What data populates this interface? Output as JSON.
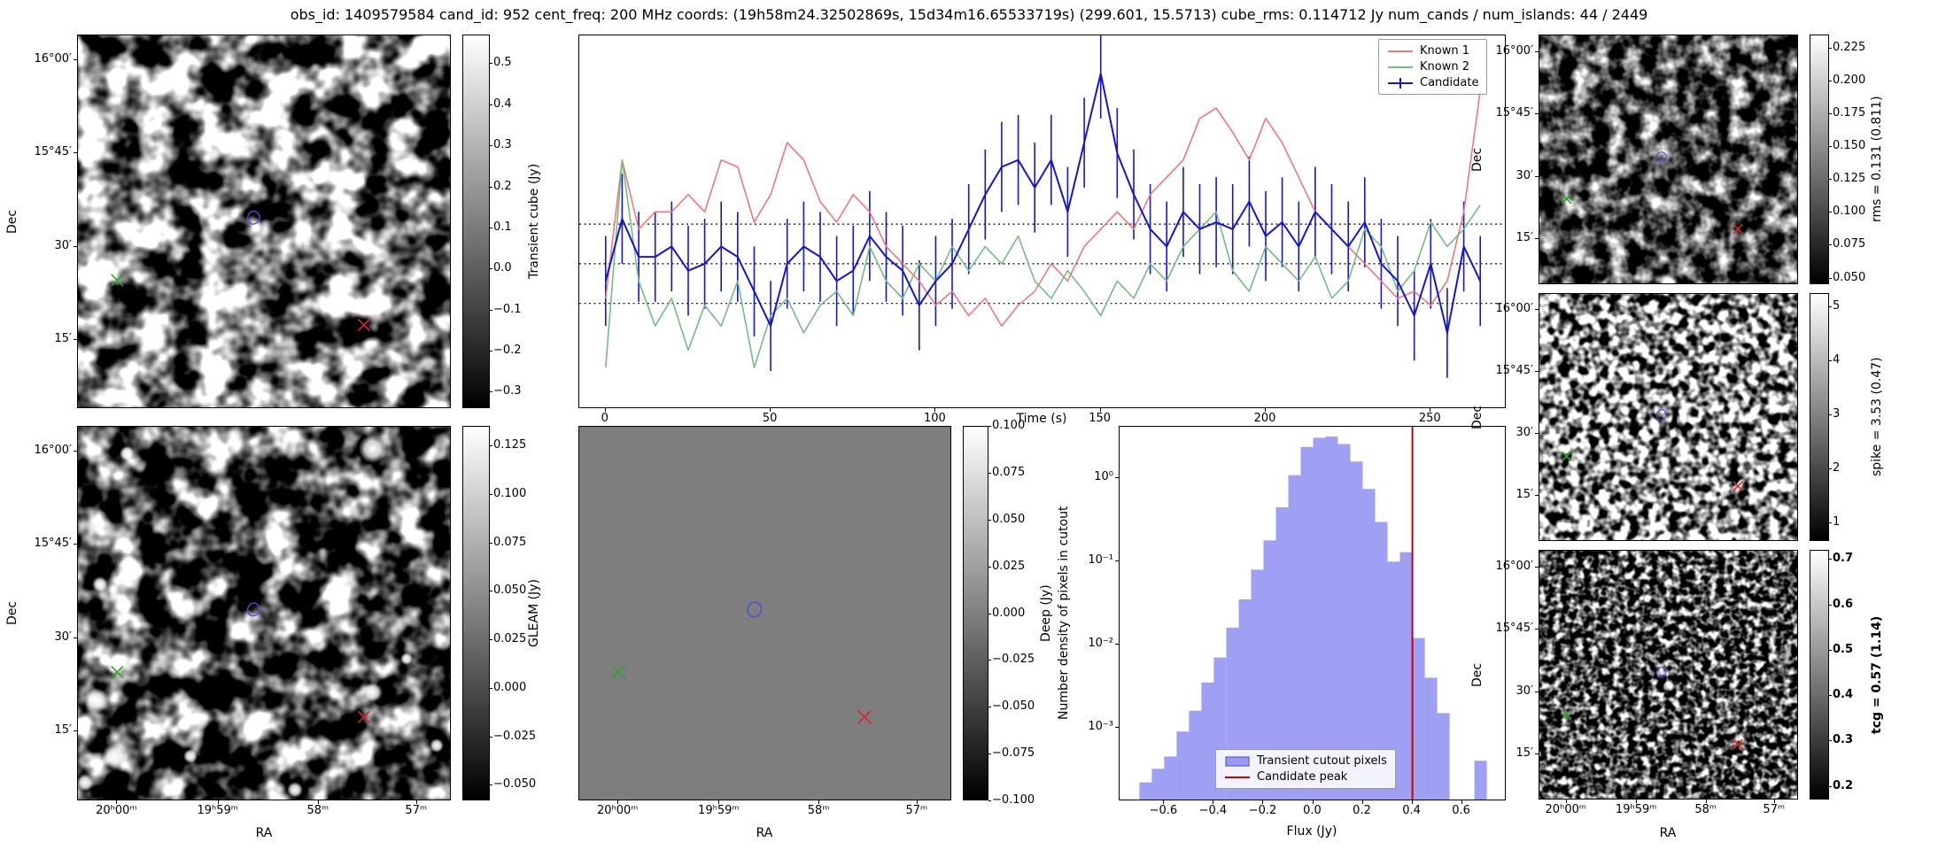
{
  "title": "obs_id: 1409579584 cand_id: 952 cent_freq: 200 MHz coords: (19h58m24.32502869s, 15d34m16.65533719s) (299.601, 15.5713) cube_rms: 0.114712 Jy num_cands / num_islands: 44 / 2449",
  "axes": {
    "dec_label": "Dec",
    "ra_label": "RA",
    "dec_ticks": [
      "16°00′",
      "15°45′",
      "30′",
      "15′"
    ],
    "ra_ticks": [
      "20ʰ00ᵐ",
      "19ʰ59ᵐ",
      "58ᵐ",
      "57ᵐ"
    ]
  },
  "colors": {
    "known1": "#f07878",
    "known2": "#72bd82",
    "candidate": "#1515cf",
    "hist_bar": "rgba(80,80,235,0.55)",
    "candidate_peak_line": "#cc0000",
    "marker_green": "#2ca02c",
    "marker_red": "#d62728",
    "contour_blue": "#5050d8"
  },
  "markers": {
    "known2_x": {
      "shape": "x",
      "color": "#2ca02c",
      "frac": [
        0.105,
        0.655
      ]
    },
    "known1_x": {
      "shape": "x",
      "color": "#d62728",
      "frac": [
        0.765,
        0.775
      ]
    },
    "candidate_contour": {
      "color": "#5050d8",
      "frac": [
        0.47,
        0.49
      ]
    }
  },
  "colorbars": {
    "transient": {
      "label": "Transient cube (Jy)",
      "tick_labels": [
        "0.5",
        "0.4",
        "0.3",
        "0.2",
        "0.1",
        "0.0",
        "−0.1",
        "−0.2",
        "−0.3"
      ],
      "tick_values": [
        0.5,
        0.4,
        0.3,
        0.2,
        0.1,
        0,
        -0.1,
        -0.2,
        -0.3
      ],
      "vmin": -0.34,
      "vmax": 0.57
    },
    "gleam": {
      "label": "GLEAM (Jy)",
      "tick_labels": [
        "0.125",
        "0.100",
        "0.075",
        "0.050",
        "0.025",
        "0.000",
        "−0.025",
        "−0.050"
      ],
      "tick_values": [
        0.125,
        0.1,
        0.075,
        0.05,
        0.025,
        0,
        -0.025,
        -0.05
      ],
      "vmin": -0.058,
      "vmax": 0.135
    },
    "deep": {
      "label": "Deep (Jy)",
      "tick_labels": [
        "0.100",
        "0.075",
        "0.050",
        "0.025",
        "0.000",
        "−0.025",
        "−0.050",
        "−0.075",
        "−0.100"
      ],
      "tick_values": [
        0.1,
        0.075,
        0.05,
        0.025,
        0,
        -0.025,
        -0.05,
        -0.075,
        -0.1
      ],
      "vmin": -0.1,
      "vmax": 0.1
    },
    "rms": {
      "label": "rms = 0.131 (0.811)",
      "tick_labels": [
        "0.225",
        "0.200",
        "0.175",
        "0.150",
        "0.125",
        "0.100",
        "0.075",
        "0.050"
      ],
      "tick_values": [
        0.225,
        0.2,
        0.175,
        0.15,
        0.125,
        0.1,
        0.075,
        0.05
      ],
      "vmin": 0.045,
      "vmax": 0.235
    },
    "spike": {
      "label": "spike = 3.53 (0.47)",
      "tick_labels": [
        "5",
        "4",
        "3",
        "2",
        "1"
      ],
      "tick_values": [
        5,
        4,
        3,
        2,
        1
      ],
      "vmin": 0.65,
      "vmax": 5.25
    },
    "tcg": {
      "label": "tcg = 0.57 (1.14)",
      "tick_labels": [
        "0.7",
        "0.6",
        "0.5",
        "0.4",
        "0.3",
        "0.2"
      ],
      "tick_values": [
        0.7,
        0.6,
        0.5,
        0.4,
        0.3,
        0.2
      ],
      "vmin": 0.17,
      "vmax": 0.72,
      "bold": true
    }
  },
  "chart_data": [
    {
      "id": "lightcurve",
      "type": "line",
      "title": "",
      "xlabel": "Time (s)",
      "ylabel": "",
      "xlim": [
        -8,
        273
      ],
      "ylim": [
        -0.42,
        0.66
      ],
      "x_ticks": [
        0,
        50,
        100,
        150,
        200,
        250
      ],
      "x_tick_labels": [
        "0",
        "50",
        "100",
        "150",
        "200",
        "250"
      ],
      "hlines": [
        0.114712,
        0.0,
        -0.114712
      ],
      "hline_style": "dotted",
      "legend_position": "upper right",
      "x": [
        0,
        5,
        10,
        15,
        20,
        25,
        30,
        35,
        40,
        45,
        50,
        55,
        60,
        65,
        70,
        75,
        80,
        85,
        90,
        95,
        100,
        105,
        110,
        115,
        120,
        125,
        130,
        135,
        140,
        145,
        150,
        155,
        160,
        165,
        170,
        175,
        180,
        185,
        190,
        195,
        200,
        205,
        210,
        215,
        220,
        225,
        230,
        235,
        240,
        245,
        250,
        255,
        260,
        265
      ],
      "series": [
        {
          "name": "Known 1",
          "color": "#f07878",
          "values": [
            -0.1,
            0.3,
            0.1,
            0.15,
            0.15,
            0.2,
            0.15,
            0.3,
            0.28,
            0.12,
            0.2,
            0.35,
            0.3,
            0.18,
            0.12,
            0.2,
            0.15,
            0.05,
            0.0,
            -0.05,
            -0.12,
            -0.08,
            -0.15,
            -0.1,
            -0.18,
            -0.12,
            -0.08,
            0.0,
            -0.05,
            0.05,
            0.1,
            0.15,
            0.1,
            0.2,
            0.25,
            0.3,
            0.42,
            0.45,
            0.38,
            0.3,
            0.42,
            0.35,
            0.25,
            0.15,
            0.1,
            0.05,
            0.0,
            -0.05,
            -0.1,
            -0.08,
            -0.12,
            -0.05,
            0.15,
            0.5
          ]
        },
        {
          "name": "Known 2",
          "color": "#72bd82",
          "values": [
            -0.3,
            0.3,
            -0.05,
            -0.18,
            -0.1,
            -0.25,
            -0.12,
            -0.18,
            -0.05,
            -0.3,
            -0.15,
            -0.1,
            -0.2,
            -0.12,
            -0.08,
            -0.15,
            0.05,
            -0.05,
            -0.1,
            0.0,
            -0.05,
            0.05,
            -0.02,
            0.05,
            0.0,
            0.08,
            -0.05,
            -0.1,
            -0.02,
            -0.08,
            -0.15,
            -0.05,
            -0.1,
            0.0,
            -0.05,
            0.05,
            0.1,
            0.15,
            -0.02,
            -0.08,
            0.05,
            0.0,
            -0.05,
            0.02,
            -0.1,
            -0.05,
            0.1,
            0.05,
            -0.08,
            -0.02,
            0.12,
            0.05,
            0.1,
            0.17
          ]
        },
        {
          "name": "Candidate",
          "color": "#1515cf",
          "yerr": 0.13,
          "values": [
            -0.05,
            0.13,
            0.02,
            0.02,
            0.05,
            -0.02,
            0.0,
            0.05,
            0.02,
            -0.08,
            -0.18,
            0.0,
            0.05,
            0.02,
            -0.05,
            -0.02,
            0.08,
            0.02,
            -0.02,
            -0.12,
            -0.05,
            0.0,
            0.1,
            0.2,
            0.28,
            0.3,
            0.22,
            0.3,
            0.15,
            0.35,
            0.55,
            0.32,
            0.2,
            0.1,
            0.05,
            0.15,
            0.1,
            0.12,
            0.1,
            0.18,
            0.08,
            0.12,
            0.05,
            0.15,
            0.1,
            0.05,
            0.12,
            0.0,
            -0.05,
            -0.15,
            0.0,
            -0.2,
            0.05,
            -0.05
          ]
        }
      ]
    },
    {
      "id": "flux-histogram",
      "type": "bar",
      "xlabel": "Flux (Jy)",
      "ylabel": "Number density of pixels in cutout",
      "yscale": "log",
      "xlim": [
        -0.78,
        0.78
      ],
      "ylim": [
        0.00013,
        4.2
      ],
      "x_tick_values": [
        -0.6,
        -0.4,
        -0.2,
        0,
        0.2,
        0.4,
        0.6
      ],
      "x_ticks": [
        "−0.6",
        "−0.4",
        "−0.2",
        "0.0",
        "0.2",
        "0.4",
        "0.6"
      ],
      "y_tick_values": [
        1,
        0.1,
        0.01,
        0.001
      ],
      "y_ticks": [
        "10⁰",
        "10⁻¹",
        "10⁻²",
        "10⁻³"
      ],
      "bin_width": 0.05,
      "bin_centers": [
        -0.675,
        -0.625,
        -0.575,
        -0.525,
        -0.475,
        -0.425,
        -0.375,
        -0.325,
        -0.275,
        -0.225,
        -0.175,
        -0.125,
        -0.075,
        -0.025,
        0.025,
        0.075,
        0.125,
        0.175,
        0.225,
        0.275,
        0.325,
        0.375,
        0.425,
        0.475,
        0.525,
        0.575,
        0.625,
        0.675
      ],
      "densities": [
        0.00022,
        0.00032,
        0.00045,
        0.0009,
        0.0016,
        0.0035,
        0.007,
        0.016,
        0.035,
        0.08,
        0.18,
        0.45,
        1.1,
        2.4,
        3.1,
        3.2,
        2.6,
        1.6,
        0.75,
        0.3,
        0.1,
        0.13,
        0.012,
        0.004,
        0.0015,
        0,
        0,
        0.0004
      ],
      "bar_color": "rgba(80,80,235,0.55)",
      "vline": {
        "x": 0.4,
        "color": "#cc0000"
      },
      "legend": [
        "Transient cutout pixels",
        "Candidate peak"
      ],
      "legend_position": "lower center"
    }
  ]
}
